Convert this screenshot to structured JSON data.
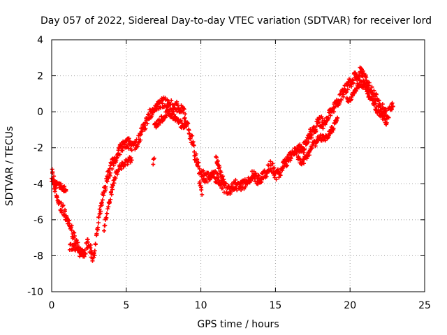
{
  "chart_data": {
    "type": "scatter",
    "title": "Day 057 of 2022, Sidereal Day-to-day VTEC variation (SDTVAR) for receiver lord",
    "xlabel": "GPS time / hours",
    "ylabel": "SDTVAR / TECUs",
    "xlim": [
      0,
      25
    ],
    "ylim": [
      -10,
      4
    ],
    "xticks": [
      0,
      5,
      10,
      15,
      20,
      25
    ],
    "yticks": [
      -10,
      -8,
      -6,
      -4,
      -2,
      0,
      2,
      4
    ],
    "grid": true,
    "marker": "+",
    "series": [
      {
        "name": "SDTVAR",
        "color": "#ff0000",
        "band": 0.6,
        "points": [
          [
            0.0,
            -3.4
          ],
          [
            0.1,
            -3.6
          ],
          [
            0.2,
            -4.2
          ],
          [
            0.3,
            -4.6
          ],
          [
            0.45,
            -5.0
          ],
          [
            0.6,
            -5.2
          ],
          [
            0.8,
            -5.5
          ],
          [
            1.0,
            -5.9
          ],
          [
            1.2,
            -6.3
          ],
          [
            1.4,
            -6.8
          ],
          [
            1.6,
            -7.2
          ],
          [
            1.8,
            -7.6
          ],
          [
            2.0,
            -7.9
          ],
          [
            2.2,
            -7.8
          ],
          [
            2.4,
            -7.3
          ],
          [
            2.6,
            -7.6
          ],
          [
            2.75,
            -8.2
          ],
          [
            2.9,
            -7.6
          ],
          [
            3.05,
            -6.6
          ],
          [
            3.2,
            -5.6
          ],
          [
            3.35,
            -4.9
          ],
          [
            3.5,
            -4.3
          ],
          [
            3.7,
            -3.8
          ],
          [
            3.9,
            -3.3
          ],
          [
            4.1,
            -2.8
          ],
          [
            4.3,
            -2.5
          ],
          [
            4.5,
            -2.2
          ],
          [
            4.8,
            -1.9
          ],
          [
            5.1,
            -1.7
          ],
          [
            5.4,
            -2.0
          ],
          [
            5.6,
            -1.8
          ],
          [
            5.8,
            -1.6
          ],
          [
            6.0,
            -1.2
          ],
          [
            6.2,
            -0.8
          ],
          [
            6.4,
            -0.5
          ],
          [
            6.6,
            -0.1
          ],
          [
            6.9,
            0.2
          ],
          [
            7.2,
            0.4
          ],
          [
            7.5,
            0.5
          ],
          [
            7.8,
            0.4
          ],
          [
            8.2,
            0.3
          ],
          [
            8.5,
            0.3
          ],
          [
            8.8,
            0.1
          ],
          [
            9.0,
            -0.5
          ],
          [
            9.2,
            -1.0
          ],
          [
            9.4,
            -1.6
          ],
          [
            9.6,
            -2.4
          ],
          [
            9.8,
            -3.0
          ],
          [
            10.0,
            -3.4
          ],
          [
            10.2,
            -3.6
          ],
          [
            10.5,
            -3.7
          ],
          [
            10.8,
            -3.5
          ],
          [
            11.0,
            -3.6
          ],
          [
            11.2,
            -3.8
          ],
          [
            11.5,
            -4.1
          ],
          [
            11.8,
            -4.4
          ],
          [
            12.0,
            -4.3
          ],
          [
            12.3,
            -4.0
          ],
          [
            12.6,
            -4.2
          ],
          [
            12.9,
            -4.0
          ],
          [
            13.2,
            -3.7
          ],
          [
            13.5,
            -3.5
          ],
          [
            13.8,
            -3.8
          ],
          [
            14.1,
            -3.6
          ],
          [
            14.4,
            -3.3
          ],
          [
            14.7,
            -3.0
          ],
          [
            15.0,
            -3.5
          ],
          [
            15.3,
            -3.3
          ],
          [
            15.6,
            -2.9
          ],
          [
            15.9,
            -2.6
          ],
          [
            16.2,
            -2.3
          ],
          [
            16.5,
            -2.0
          ],
          [
            16.8,
            -2.2
          ],
          [
            17.1,
            -1.6
          ],
          [
            17.4,
            -1.2
          ],
          [
            17.7,
            -0.8
          ],
          [
            18.0,
            -0.5
          ],
          [
            18.3,
            -0.7
          ],
          [
            18.6,
            -0.2
          ],
          [
            18.9,
            0.3
          ],
          [
            19.2,
            0.6
          ],
          [
            19.5,
            1.0
          ],
          [
            19.8,
            1.4
          ],
          [
            20.1,
            1.7
          ],
          [
            20.4,
            2.0
          ],
          [
            20.7,
            2.2
          ],
          [
            21.0,
            1.9
          ],
          [
            21.3,
            1.4
          ],
          [
            21.6,
            0.9
          ],
          [
            21.9,
            0.5
          ],
          [
            22.2,
            0.1
          ],
          [
            22.5,
            -0.2
          ],
          [
            22.8,
            0.2
          ],
          [
            22.9,
            0.3
          ]
        ],
        "extra_segments": [
          [
            [
              0.0,
              -3.8
            ],
            [
              0.3,
              -4.0
            ],
            [
              0.6,
              -4.1
            ],
            [
              0.9,
              -4.3
            ],
            [
              1.0,
              -4.6
            ]
          ],
          [
            [
              1.2,
              -7.5
            ],
            [
              1.6,
              -7.6
            ],
            [
              1.9,
              -7.7
            ],
            [
              2.1,
              -7.9
            ]
          ],
          [
            [
              3.5,
              -6.6
            ],
            [
              3.7,
              -5.6
            ],
            [
              3.9,
              -4.9
            ],
            [
              4.1,
              -4.1
            ],
            [
              4.3,
              -3.5
            ],
            [
              4.6,
              -3.1
            ],
            [
              5.0,
              -2.8
            ],
            [
              5.4,
              -2.6
            ]
          ],
          [
            [
              6.8,
              -2.9
            ],
            [
              6.9,
              -2.6
            ]
          ],
          [
            [
              6.9,
              -0.8
            ],
            [
              7.2,
              -0.6
            ],
            [
              7.5,
              -0.3
            ],
            [
              7.8,
              0.0
            ],
            [
              8.1,
              -0.2
            ],
            [
              8.4,
              -0.4
            ],
            [
              8.7,
              -0.7
            ],
            [
              9.0,
              -0.8
            ]
          ],
          [
            [
              9.9,
              -4.0
            ],
            [
              10.1,
              -4.5
            ]
          ],
          [
            [
              11.0,
              -2.6
            ],
            [
              11.2,
              -3.0
            ],
            [
              11.4,
              -3.6
            ],
            [
              11.6,
              -4.0
            ]
          ],
          [
            [
              16.5,
              -2.6
            ],
            [
              16.8,
              -2.8
            ],
            [
              17.1,
              -2.5
            ],
            [
              17.4,
              -2.0
            ],
            [
              17.7,
              -1.7
            ],
            [
              18.0,
              -1.4
            ],
            [
              18.3,
              -1.5
            ],
            [
              18.6,
              -1.2
            ],
            [
              18.9,
              -0.8
            ],
            [
              19.2,
              -0.3
            ]
          ],
          [
            [
              19.8,
              0.7
            ],
            [
              20.1,
              0.8
            ],
            [
              20.4,
              1.3
            ],
            [
              20.7,
              1.6
            ],
            [
              21.0,
              1.4
            ],
            [
              21.3,
              0.8
            ],
            [
              21.6,
              0.4
            ],
            [
              21.9,
              0.0
            ],
            [
              22.2,
              -0.3
            ],
            [
              22.5,
              -0.6
            ]
          ]
        ]
      }
    ]
  }
}
